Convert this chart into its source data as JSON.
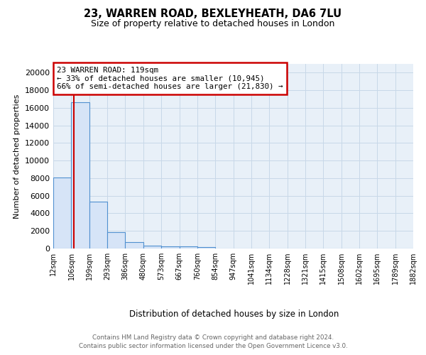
{
  "title1": "23, WARREN ROAD, BEXLEYHEATH, DA6 7LU",
  "title2": "Size of property relative to detached houses in London",
  "xlabel": "Distribution of detached houses by size in London",
  "ylabel": "Number of detached properties",
  "bin_edges": [
    12,
    106,
    199,
    293,
    386,
    480,
    573,
    667,
    760,
    854,
    947,
    1041,
    1134,
    1228,
    1321,
    1415,
    1508,
    1602,
    1695,
    1789,
    1882
  ],
  "bin_labels": [
    "12sqm",
    "106sqm",
    "199sqm",
    "293sqm",
    "386sqm",
    "480sqm",
    "573sqm",
    "667sqm",
    "760sqm",
    "854sqm",
    "947sqm",
    "1041sqm",
    "1134sqm",
    "1228sqm",
    "1321sqm",
    "1415sqm",
    "1508sqm",
    "1602sqm",
    "1695sqm",
    "1789sqm",
    "1882sqm"
  ],
  "bin_counts": [
    8100,
    16600,
    5300,
    1850,
    700,
    350,
    250,
    210,
    190,
    0,
    0,
    0,
    0,
    0,
    0,
    0,
    0,
    0,
    0,
    0
  ],
  "bar_facecolor": "#d6e4f7",
  "bar_edgecolor": "#5090d0",
  "grid_color": "#c8d8e8",
  "plot_bg_color": "#e8f0f8",
  "property_size": 119,
  "property_line_color": "#cc0000",
  "annotation_line1": "23 WARREN ROAD: 119sqm",
  "annotation_line2": "← 33% of detached houses are smaller (10,945)",
  "annotation_line3": "66% of semi-detached houses are larger (21,830) →",
  "annotation_box_edgecolor": "#cc0000",
  "ylim": [
    0,
    21000
  ],
  "yticks": [
    0,
    2000,
    4000,
    6000,
    8000,
    10000,
    12000,
    14000,
    16000,
    18000,
    20000
  ],
  "footer1": "Contains HM Land Registry data © Crown copyright and database right 2024.",
  "footer2": "Contains public sector information licensed under the Open Government Licence v3.0."
}
